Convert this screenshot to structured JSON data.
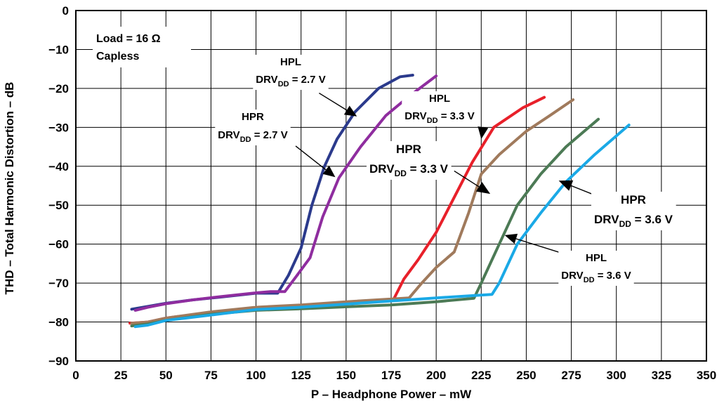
{
  "chart_data": {
    "type": "line",
    "title": "",
    "xlabel": "P – Headphone Power – mW",
    "ylabel": "THD – Total Harmonic Distortion – dB",
    "xlim": [
      0,
      350
    ],
    "ylim": [
      -90,
      0
    ],
    "xticks": [
      "0",
      "25",
      "50",
      "75",
      "100",
      "125",
      "150",
      "175",
      "200",
      "225",
      "250",
      "275",
      "300",
      "325",
      "350"
    ],
    "yticks": [
      "0",
      "−10",
      "−20",
      "−30",
      "−40",
      "−50",
      "−60",
      "−70",
      "−80",
      "−90"
    ],
    "grid": true,
    "legend": "none",
    "load_note": {
      "line1": "Load = 16 Ω",
      "line2": "Capless"
    },
    "series": [
      {
        "color": "#2b3a8c",
        "x": [
          31,
          40,
          50,
          65,
          80,
          100,
          112,
          118,
          125,
          131,
          138,
          145,
          155,
          168,
          180,
          187
        ],
        "y": [
          -76.7,
          -76,
          -75.2,
          -74.3,
          -73.6,
          -72.6,
          -72.6,
          -68,
          -61,
          -50,
          -40,
          -33,
          -26,
          -20,
          -17,
          -16.6
        ]
      },
      {
        "color": "#8f2d9f",
        "x": [
          33,
          40,
          50,
          65,
          80,
          100,
          108,
          116,
          122,
          130,
          137,
          146,
          158,
          172,
          185,
          200
        ],
        "y": [
          -77,
          -76.2,
          -75.3,
          -74.3,
          -73.5,
          -72.5,
          -72.2,
          -72.2,
          -68.5,
          -63.5,
          -53,
          -43,
          -35,
          -27,
          -22,
          -16.8
        ]
      },
      {
        "color": "#e8202a",
        "x": [
          30,
          40,
          50,
          75,
          100,
          125,
          150,
          176,
          182,
          190,
          200,
          210,
          220,
          232,
          248,
          260
        ],
        "y": [
          -80.3,
          -80,
          -79,
          -77.5,
          -76.5,
          -76,
          -75.3,
          -74.5,
          -69,
          -64,
          -57,
          -48,
          -39,
          -30,
          -25,
          -22.3
        ]
      },
      {
        "color": "#a07a5c",
        "x": [
          31,
          40,
          50,
          75,
          100,
          125,
          150,
          185,
          192,
          200,
          210,
          218,
          225,
          235,
          250,
          263,
          276
        ],
        "y": [
          -80.3,
          -80,
          -79,
          -77.4,
          -76.2,
          -75.6,
          -74.8,
          -73.8,
          -70,
          -66,
          -62,
          -52,
          -42,
          -37,
          -31,
          -27,
          -22.9
        ]
      },
      {
        "color": "#4c7a55",
        "x": [
          31,
          40,
          50,
          75,
          100,
          125,
          150,
          175,
          200,
          221,
          225,
          235,
          245,
          258,
          272,
          290
        ],
        "y": [
          -81,
          -80.5,
          -79.6,
          -78,
          -77,
          -76.6,
          -76.1,
          -75.6,
          -74.8,
          -73.9,
          -70,
          -60,
          -50,
          -42,
          -35,
          -27.9
        ]
      },
      {
        "color": "#1aa9e6",
        "x": [
          33,
          40,
          50,
          75,
          100,
          125,
          150,
          175,
          200,
          231,
          235,
          245,
          258,
          272,
          288,
          307
        ],
        "y": [
          -81.2,
          -80.8,
          -79.6,
          -78.2,
          -76.8,
          -76.2,
          -75.4,
          -74.6,
          -73.8,
          -72.9,
          -70,
          -60,
          -52,
          -44,
          -37,
          -29.4
        ]
      }
    ],
    "annotations": [
      {
        "id": "hpl-27",
        "lines": [
          "HPL",
          "DRV",
          "DD",
          " = 2.7 V"
        ],
        "big": false,
        "tail": [
          135,
          -21.2
        ],
        "head": [
          156,
          -27.2
        ]
      },
      {
        "id": "hpr-27",
        "lines": [
          "HPR",
          "DRV",
          "DD",
          " = 2.7 V"
        ],
        "big": false,
        "tail": [
          122,
          -34.8
        ],
        "head": [
          144,
          -42.8
        ]
      },
      {
        "id": "hpl-33",
        "lines": [
          "HPL",
          "DRV",
          "DD",
          " = 3.3 V"
        ],
        "big": false,
        "tail": [
          226,
          -29.9
        ],
        "head": [
          225,
          -33
        ]
      },
      {
        "id": "hpr-33",
        "lines": [
          "HPR",
          "DRV",
          "DD",
          " = 3.3 V"
        ],
        "big": true,
        "tail": [
          210,
          -41.2
        ],
        "head": [
          230,
          -47.1
        ]
      },
      {
        "id": "hpr-36",
        "lines": [
          "HPR",
          "DRV",
          "DD",
          " = 3.6 V"
        ],
        "big": true,
        "tail": [
          288,
          -47.4
        ],
        "head": [
          268,
          -43.7
        ]
      },
      {
        "id": "hpl-36",
        "lines": [
          "HPL",
          "DRV",
          "DD",
          " = 3.6 V"
        ],
        "big": false,
        "tail": [
          300,
          -66.7
        ],
        "head": [
          238,
          -57.7
        ]
      }
    ]
  }
}
